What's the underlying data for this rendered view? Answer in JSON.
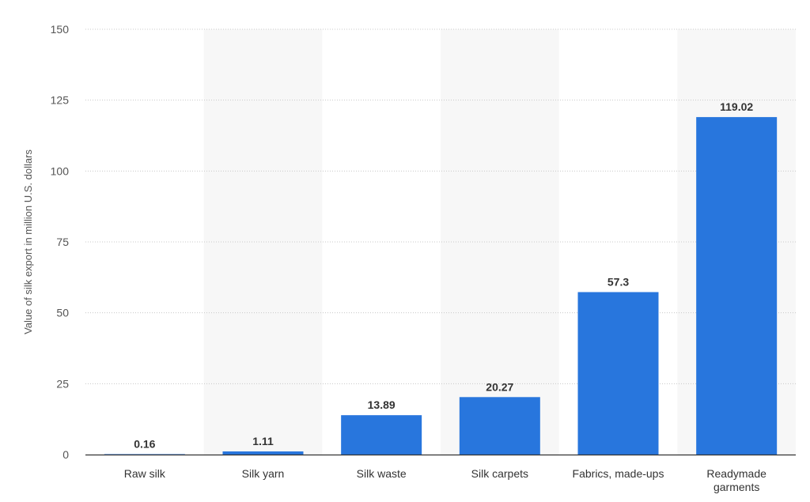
{
  "chart_data": {
    "type": "bar",
    "title": "",
    "xlabel": "",
    "ylabel": "Value of silk export in million U.S. dollars",
    "categories": [
      "Raw silk",
      "Silk yarn",
      "Silk waste",
      "Silk carpets",
      "Fabrics, made-ups",
      "Readymade garments"
    ],
    "values": [
      0.16,
      1.11,
      13.89,
      20.27,
      57.3,
      119.02
    ],
    "value_labels": [
      "0.16",
      "1.11",
      "13.89",
      "20.27",
      "57.3",
      "119.02"
    ],
    "ylim": [
      0,
      150
    ],
    "yticks": [
      0,
      25,
      50,
      75,
      100,
      125,
      150
    ],
    "grid": true,
    "bar_color": "#2876dd",
    "band_color": "#f7f7f7"
  }
}
